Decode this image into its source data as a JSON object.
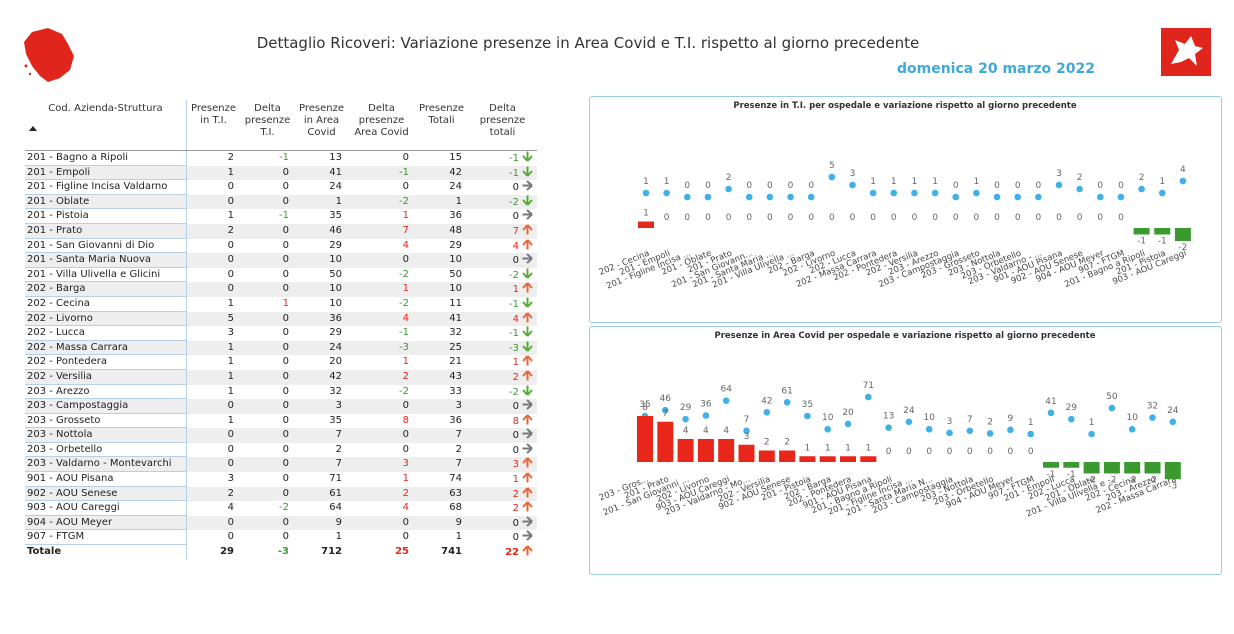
{
  "header": {
    "title": "Dettaglio Ricoveri: Variazione presenze in Area Covid e T.I. rispetto al giorno precedente",
    "date": "domenica 20 marzo 2022"
  },
  "table": {
    "columns": [
      "Cod. Azienda-Struttura",
      "Presenze in T.I.",
      "Delta presenze T.I.",
      "Presenze in Area Covid",
      "Delta presenze Area Covid",
      "Presenze Totali",
      "Delta presenze totali"
    ],
    "rows": [
      [
        "201 - Bagno a Ripoli",
        2,
        -1,
        13,
        0,
        15,
        -1
      ],
      [
        "201 - Empoli",
        1,
        0,
        41,
        -1,
        42,
        -1
      ],
      [
        "201 - Figline Incisa Valdarno",
        0,
        0,
        24,
        0,
        24,
        0
      ],
      [
        "201 - Oblate",
        0,
        0,
        1,
        -2,
        1,
        -2
      ],
      [
        "201 - Pistoia",
        1,
        -1,
        35,
        1,
        36,
        0
      ],
      [
        "201 - Prato",
        2,
        0,
        46,
        7,
        48,
        7
      ],
      [
        "201 - San Giovanni di Dio",
        0,
        0,
        29,
        4,
        29,
        4
      ],
      [
        "201 - Santa Maria Nuova",
        0,
        0,
        10,
        0,
        10,
        0
      ],
      [
        "201 - Villa Ulivella e Glicini",
        0,
        0,
        50,
        -2,
        50,
        -2
      ],
      [
        "202 - Barga",
        0,
        0,
        10,
        1,
        10,
        1
      ],
      [
        "202 - Cecina",
        1,
        1,
        10,
        -2,
        11,
        -1
      ],
      [
        "202 - Livorno",
        5,
        0,
        36,
        4,
        41,
        4
      ],
      [
        "202 - Lucca",
        3,
        0,
        29,
        -1,
        32,
        -1
      ],
      [
        "202 - Massa Carrara",
        1,
        0,
        24,
        -3,
        25,
        -3
      ],
      [
        "202 - Pontedera",
        1,
        0,
        20,
        1,
        21,
        1
      ],
      [
        "202 - Versilia",
        1,
        0,
        42,
        2,
        43,
        2
      ],
      [
        "203 - Arezzo",
        1,
        0,
        32,
        -2,
        33,
        -2
      ],
      [
        "203 - Campostaggia",
        0,
        0,
        3,
        0,
        3,
        0
      ],
      [
        "203 - Grosseto",
        1,
        0,
        35,
        8,
        36,
        8
      ],
      [
        "203 - Nottola",
        0,
        0,
        7,
        0,
        7,
        0
      ],
      [
        "203 - Orbetello",
        0,
        0,
        2,
        0,
        2,
        0
      ],
      [
        "203 - Valdarno - Montevarchi",
        0,
        0,
        7,
        3,
        7,
        3
      ],
      [
        "901 - AOU Pisana",
        3,
        0,
        71,
        1,
        74,
        1
      ],
      [
        "902 - AOU Senese",
        2,
        0,
        61,
        2,
        63,
        2
      ],
      [
        "903 - AOU Careggi",
        4,
        -2,
        64,
        4,
        68,
        2
      ],
      [
        "904 - AOU Meyer",
        0,
        0,
        9,
        0,
        9,
        0
      ],
      [
        "907 - FTGM",
        0,
        0,
        1,
        0,
        1,
        0
      ]
    ],
    "total": [
      "Totale",
      29,
      -3,
      712,
      25,
      741,
      22
    ]
  },
  "chart_data": [
    {
      "type": "dot-bar",
      "title": "Presenze in T.I. per ospedale e variazione rispetto al giorno precedente",
      "categories": [
        "202 - Cecina",
        "201 - Empoli",
        "201 - Figline Incisa ...",
        "201 - Oblate",
        "201 - Prato",
        "201 - San Giovann...",
        "201 - Santa Maria ...",
        "201 - Villa Ulivella ...",
        "202 - Barga",
        "202 - Livorno",
        "202 - Lucca",
        "202 - Massa Carrara",
        "202 - Pontedera",
        "202 - Versilia",
        "203 - Arezzo",
        "203 - Campostaggia",
        "203 - Grosseto",
        "203 - Nottola",
        "203 - Orbetello",
        "203 - Valdarno - ...",
        "901 - AOU Pisana",
        "902 - AOU Senese",
        "904 - AOU Meyer",
        "907 - FTGM",
        "201 - Bagno a Ripoli",
        "201 - Pistoia",
        "903 - AOU Careggi"
      ],
      "series": [
        {
          "type": "dot",
          "color": "#3fb0e8",
          "values": [
            1,
            1,
            0,
            0,
            2,
            0,
            0,
            0,
            0,
            5,
            3,
            1,
            1,
            1,
            1,
            0,
            1,
            0,
            0,
            0,
            3,
            2,
            0,
            0,
            2,
            1,
            4
          ]
        },
        {
          "type": "bar",
          "color_positive": "#e8261a",
          "color_negative": "#3a9a2f",
          "values": [
            1,
            0,
            0,
            0,
            0,
            0,
            0,
            0,
            0,
            0,
            0,
            0,
            0,
            0,
            0,
            0,
            0,
            0,
            0,
            0,
            0,
            0,
            0,
            0,
            -1,
            -1,
            -2
          ]
        }
      ]
    },
    {
      "type": "dot-bar",
      "title": "Presenze in Area Covid per ospedale e variazione rispetto al giorno precedente",
      "categories": [
        "203 - Gros...",
        "201 - Prato",
        "201 - San Giovanni ...",
        "202 - Livorno",
        "903 - AOU Careggi",
        "203 - Valdarno - Mo...",
        "202 - Versilia",
        "902 - AOU Senese",
        "201 - Pistoia",
        "202 - Barga",
        "202 - Pontedera",
        "901 - AOU Pisana",
        "201 - Bagno a Ripoli",
        "201 - Figline Incisa ...",
        "201 - Santa Maria N...",
        "203 - Campostaggia",
        "203 - Nottola",
        "203 - Orbetello",
        "904 - AOU Meyer",
        "907 - FTGM",
        "201 - Empoli",
        "202 - Lucca",
        "201 - Oblate",
        "201 - Villa Ulivella e ...",
        "202 - Cecina",
        "203 - Arezzo",
        "202 - Massa Carrara"
      ],
      "series": [
        {
          "type": "dot",
          "color": "#3fb0e8",
          "values": [
            35,
            46,
            29,
            36,
            64,
            7,
            42,
            61,
            35,
            10,
            20,
            71,
            13,
            24,
            10,
            3,
            7,
            2,
            9,
            1,
            41,
            29,
            1,
            50,
            10,
            32,
            24
          ]
        },
        {
          "type": "bar",
          "color_positive": "#e8261a",
          "color_negative": "#3a9a2f",
          "values": [
            8,
            7,
            4,
            4,
            4,
            3,
            2,
            2,
            1,
            1,
            1,
            1,
            0,
            0,
            0,
            0,
            0,
            0,
            0,
            0,
            -1,
            -1,
            -2,
            -2,
            -2,
            -2,
            -3
          ]
        }
      ]
    }
  ]
}
